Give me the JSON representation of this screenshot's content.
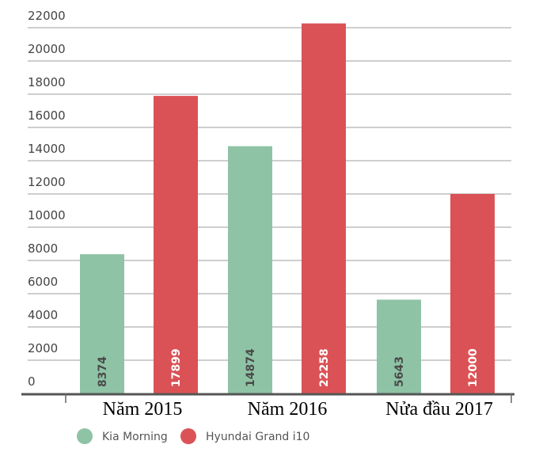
{
  "chart_data": {
    "type": "bar",
    "title": "",
    "xlabel": "",
    "ylabel": "",
    "categories": [
      "Năm 2015",
      "Năm 2016",
      "Nửa đầu 2017"
    ],
    "series": [
      {
        "name": "Kia Morning",
        "values": [
          8374,
          14874,
          5643
        ],
        "color": "#8fc3a5",
        "label_color": "#4a4a4a"
      },
      {
        "name": "Hyundai Grand i10",
        "values": [
          17899,
          22258,
          12000
        ],
        "color": "#db5256",
        "label_color": "#ffffff"
      }
    ],
    "yticks": [
      0,
      2000,
      4000,
      6000,
      8000,
      10000,
      12000,
      14000,
      16000,
      18000,
      20000,
      22000
    ],
    "ylim": [
      0,
      22000
    ],
    "grid": true,
    "legend": "bottom-left"
  }
}
